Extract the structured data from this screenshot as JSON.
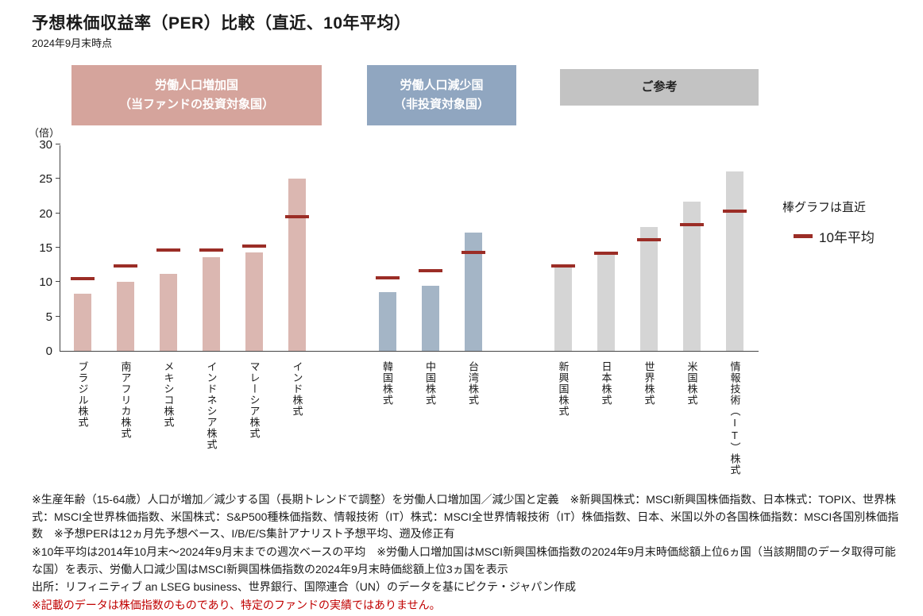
{
  "title": "予想株価収益率（PER）比較（直近、10年平均）",
  "subtitle": "2024年9月末時点",
  "headers": [
    {
      "line1": "労働人口増加国",
      "line2": "（当ファンドの投資対象国）",
      "bg": "#d5a49c",
      "text": "#ffffff"
    },
    {
      "line1": "労働人口減少国",
      "line2": "（非投資対象国）",
      "bg": "#90a6c0",
      "text": "#ffffff"
    },
    {
      "line1": "ご参考",
      "line2": "",
      "bg": "#c3c3c3",
      "text": "#222222"
    }
  ],
  "y_axis": {
    "unit": "（倍）"
  },
  "legend": {
    "bar_note": "棒グラフは直近",
    "marker_label": "10年平均"
  },
  "chart_data": {
    "type": "bar",
    "title": "予想株価収益率（PER）比較（直近、10年平均）",
    "ylabel": "（倍）",
    "ylim": [
      0,
      30
    ],
    "yticks": [
      0,
      5,
      10,
      15,
      20,
      25,
      30
    ],
    "marker_color": "#9b2d26",
    "series_names": [
      "直近（棒グラフ）",
      "10年平均（マーカー）"
    ],
    "groups": [
      {
        "name": "労働人口増加国（当ファンドの投資対象国）",
        "bar_color": "#dbb7b1",
        "items": [
          {
            "label": "ブラジル株式",
            "recent": 8.3,
            "avg10y": 10.5
          },
          {
            "label": "南アフリカ株式",
            "recent": 10.0,
            "avg10y": 12.4
          },
          {
            "label": "メキシコ株式",
            "recent": 11.2,
            "avg10y": 14.7
          },
          {
            "label": "インドネシア株式",
            "recent": 13.6,
            "avg10y": 14.7
          },
          {
            "label": "マレーシア株式",
            "recent": 14.3,
            "avg10y": 15.2
          },
          {
            "label": "インド株式",
            "recent": 25.0,
            "avg10y": 19.5
          }
        ]
      },
      {
        "name": "労働人口減少国（非投資対象国）",
        "bar_color": "#a4b5c6",
        "items": [
          {
            "label": "韓国株式",
            "recent": 8.5,
            "avg10y": 10.6
          },
          {
            "label": "中国株式",
            "recent": 9.5,
            "avg10y": 11.7
          },
          {
            "label": "台湾株式",
            "recent": 17.2,
            "avg10y": 14.3
          }
        ]
      },
      {
        "name": "ご参考",
        "bar_color": "#d5d5d5",
        "items": [
          {
            "label": "新興国株式",
            "recent": 12.1,
            "avg10y": 12.4
          },
          {
            "label": "日本株式",
            "recent": 14.1,
            "avg10y": 14.2
          },
          {
            "label": "世界株式",
            "recent": 18.0,
            "avg10y": 16.2
          },
          {
            "label": "米国株式",
            "recent": 21.7,
            "avg10y": 18.3
          },
          {
            "label": "情報技術（IT）株式",
            "recent": 26.1,
            "avg10y": 20.3
          }
        ]
      }
    ]
  },
  "footnotes": [
    {
      "text": "※生産年齢（15-64歳）人口が増加／減少する国（長期トレンドで調整）を労働人口増加国／減少国と定義　※新興国株式：MSCI新興国株価指数、日本株式：TOPIX、世界株式：MSCI全世界株価指数、米国株式：S&P500種株価指数、情報技術（IT）株式：MSCI全世界情報技術（IT）株価指数、日本、米国以外の各国株価指数：MSCI各国別株価指数　※予想PERは12ヵ月先予想ベース、I/B/E/S集計アナリスト予想平均、遡及修正有",
      "color": "#1a1a1a"
    },
    {
      "text": "※10年平均は2014年10月末～2024年9月末までの週次ベースの平均　※労働人口増加国はMSCI新興国株価指数の2024年9月末時価総額上位6ヵ国（当該期間のデータ取得可能な国）を表示、労働人口減少国はMSCI新興国株価指数の2024年9月末時価総額上位3ヵ国を表示",
      "color": "#1a1a1a"
    },
    {
      "text": "出所：リフィニティブ an LSEG business、世界銀行、国際連合（UN）のデータを基にピクテ・ジャパン作成",
      "color": "#1a1a1a"
    },
    {
      "text": "※記載のデータは株価指数のものであり、特定のファンドの実績ではありません。",
      "color": "#c00000"
    }
  ]
}
